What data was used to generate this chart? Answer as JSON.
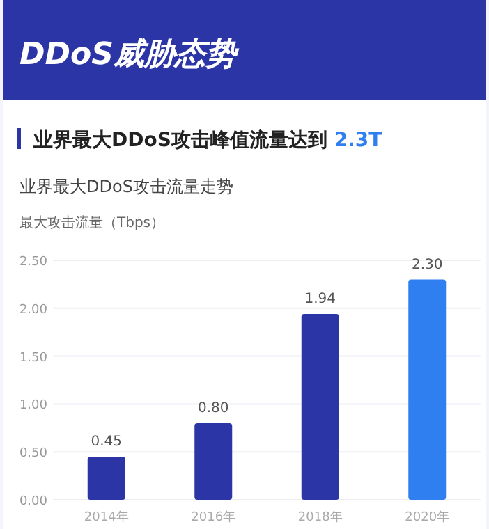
{
  "chart_data": {
    "type": "bar",
    "title": "DDoS威胁态势",
    "subtitle": "业界最大DDoS攻击峰值流量达到 2.3T",
    "annotations": [
      "业界最大DDoS攻击流量走势"
    ],
    "ylabel": "最大攻击流量（Tbps）",
    "categories": [
      "2014年",
      "2016年",
      "2018年",
      "2020年"
    ],
    "values": [
      0.45,
      0.8,
      1.94,
      2.3
    ],
    "colors": [
      "#2b35a6",
      "#2b35a6",
      "#2b35a6",
      "#2f7ff0"
    ],
    "ylim": [
      0,
      2.5
    ],
    "yticks": [
      {
        "value": 0,
        "label": "0.00"
      },
      {
        "value": 0.5,
        "label": "0.50"
      },
      {
        "value": 1,
        "label": "1.00"
      },
      {
        "value": 1.5,
        "label": "1.50"
      },
      {
        "value": 2,
        "label": "2.00"
      },
      {
        "value": 2.5,
        "label": "2.50"
      }
    ],
    "grid": "y",
    "value_labels": [
      "0.45",
      "0.80",
      "1.94",
      "2.30"
    ]
  }
}
